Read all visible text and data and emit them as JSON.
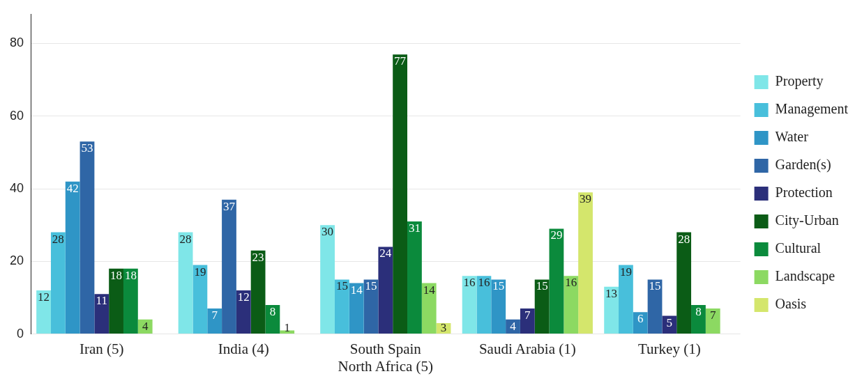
{
  "chart_data": {
    "type": "bar",
    "categories": [
      "Iran (5)",
      "India (4)",
      "South Spain\nNorth Africa (5)",
      "Saudi Arabia (1)",
      "Turkey (1)"
    ],
    "series": [
      {
        "name": "Property",
        "color": "#7fe6e8",
        "values": [
          12,
          28,
          30,
          16,
          13
        ]
      },
      {
        "name": "Management",
        "color": "#48bfdb",
        "values": [
          28,
          19,
          15,
          16,
          19
        ]
      },
      {
        "name": "Water",
        "color": "#2f95c6",
        "values": [
          42,
          7,
          14,
          15,
          6
        ]
      },
      {
        "name": "Garden(s)",
        "color": "#2f66a6",
        "values": [
          53,
          37,
          15,
          4,
          15
        ]
      },
      {
        "name": "Protection",
        "color": "#2b2f7a",
        "values": [
          11,
          12,
          24,
          7,
          5
        ]
      },
      {
        "name": "City-Urban",
        "color": "#0b5c16",
        "values": [
          18,
          23,
          77,
          15,
          28
        ]
      },
      {
        "name": "Cultural",
        "color": "#0b8a3c",
        "values": [
          18,
          8,
          31,
          29,
          8
        ]
      },
      {
        "name": "Landscape",
        "color": "#8cd962",
        "values": [
          4,
          1,
          14,
          16,
          7
        ]
      },
      {
        "name": "Oasis",
        "color": "#d4e66c",
        "values": [
          null,
          null,
          3,
          39,
          null
        ]
      }
    ],
    "ylim": [
      0,
      88
    ],
    "yticks": [
      0,
      20,
      40,
      60,
      80
    ],
    "grid": "y",
    "legend": "right",
    "data_labels": true
  }
}
